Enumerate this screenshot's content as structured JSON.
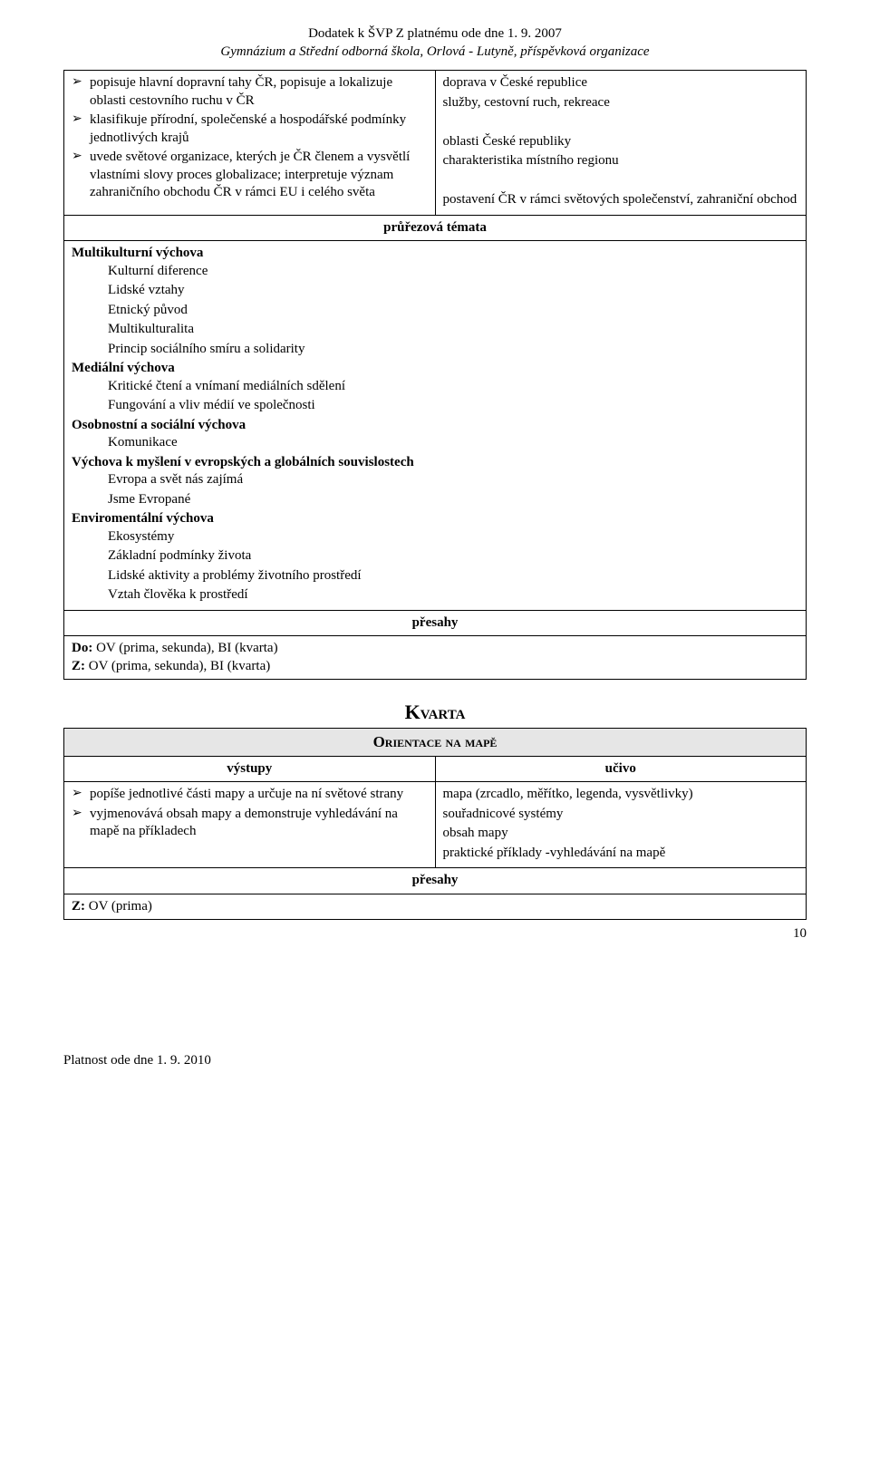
{
  "header": {
    "title": "Dodatek k ŠVP Z platnému ode dne 1. 9. 2007",
    "subtitle": "Gymnázium a Střední odborná škola, Orlová - Lutyně, příspěvková organizace"
  },
  "topTable": {
    "leftBullets": [
      "popisuje hlavní dopravní tahy ČR, popisuje a lokalizuje oblasti cestovního ruchu v ČR",
      "klasifikuje přírodní, společenské a hospodářské podmínky jednotlivých krajů",
      "uvede světové organizace, kterých je ČR členem a vysvětlí vlastními slovy proces globalizace; interpretuje význam zahraničního obchodu ČR v rámci EU i celého světa"
    ],
    "rightParas": [
      "doprava v České republice",
      "služby, cestovní ruch, rekreace",
      "",
      "oblasti České republiky",
      "charakteristika místního regionu",
      "",
      "postavení ČR v rámci světových společenství, zahraniční obchod"
    ],
    "prurezHeader": "průřezová témata",
    "prurezBody": {
      "mk_head": "Multikulturní výchova",
      "mk_items": [
        "Kulturní diference",
        "Lidské vztahy",
        "Etnický původ",
        "Multikulturalita",
        "Princip sociálního smíru a solidarity"
      ],
      "mv_head": "Mediální výchova",
      "mv_items": [
        "Kritické čtení a vnímaní mediálních sdělení",
        "Fungování a vliv médií ve společnosti"
      ],
      "osv_head": "Osobnostní a sociální výchova",
      "osv_items": [
        "Komunikace"
      ],
      "veg_head": "Výchova k myšlení v evropských a globálních souvislostech",
      "veg_items": [
        "Evropa a svět nás zajímá",
        "Jsme Evropané"
      ],
      "env_head": "Enviromentální výchova",
      "env_items": [
        "Ekosystémy",
        "Základní podmínky života",
        "Lidské aktivity a problémy životního prostředí",
        "Vztah člověka k prostředí"
      ]
    },
    "presahyHeader": "přesahy",
    "presahyBody": {
      "do_label": "Do:",
      "do_text": " OV (prima, sekunda), BI (kvarta)",
      "z_label": "Z:",
      "z_text": " OV (prima, sekunda), BI (kvarta)"
    }
  },
  "kvarta": {
    "title": "Kvarta",
    "subhead": "Orientace na mapě",
    "col_left": "výstupy",
    "col_right": "učivo",
    "leftBullets": [
      "popíše jednotlivé části mapy a určuje na ní světové strany",
      "vyjmenovává obsah mapy a demonstruje vyhledávání na mapě na příkladech"
    ],
    "rightParas": [
      "mapa (zrcadlo, měřítko, legenda, vysvětlivky)",
      "souřadnicové systémy",
      "obsah mapy",
      "praktické příklady -vyhledávání na mapě"
    ],
    "presahyHeader": "přesahy",
    "presahyBody": {
      "z_label": "Z:",
      "z_text": " OV (prima)"
    }
  },
  "footer": {
    "text": "Platnost ode dne 1. 9. 2010",
    "page": "10"
  }
}
